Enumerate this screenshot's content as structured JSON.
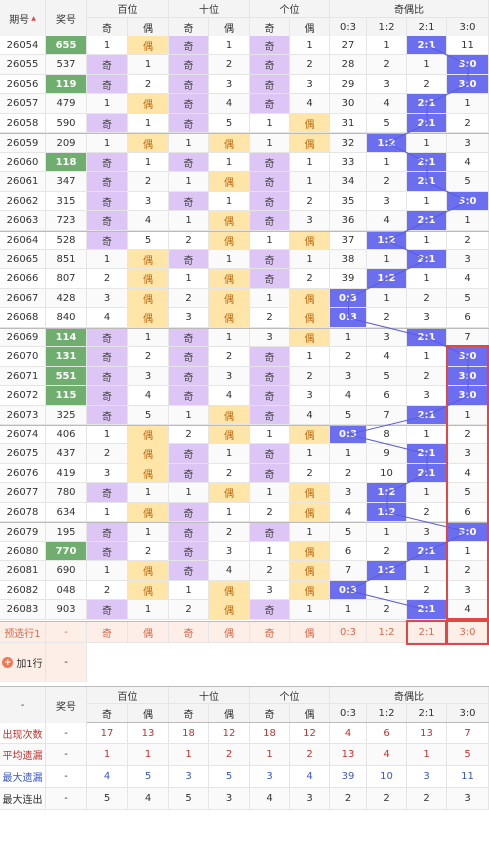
{
  "header": {
    "period": "期号",
    "award": "奖号",
    "groups": [
      "百位",
      "十位",
      "个位",
      "奇偶比"
    ],
    "sub": [
      "奇",
      "偶",
      "奇",
      "偶",
      "奇",
      "偶",
      "0:3",
      "1:2",
      "2:1",
      "3:0"
    ]
  },
  "rows": [
    {
      "p": "26054",
      "n": "655",
      "g": 1,
      "c": [
        "1",
        "偶",
        "奇",
        "1",
        "奇",
        "1",
        "27",
        "1",
        "2:1",
        "11"
      ]
    },
    {
      "p": "26055",
      "n": "537",
      "g": 0,
      "c": [
        "奇",
        "1",
        "奇",
        "2",
        "奇",
        "2",
        "28",
        "2",
        "1",
        "3:0"
      ]
    },
    {
      "p": "26056",
      "n": "119",
      "g": 1,
      "c": [
        "奇",
        "2",
        "奇",
        "3",
        "奇",
        "3",
        "29",
        "3",
        "2",
        "3:0"
      ]
    },
    {
      "p": "26057",
      "n": "479",
      "g": 0,
      "c": [
        "1",
        "偶",
        "奇",
        "4",
        "奇",
        "4",
        "30",
        "4",
        "2:1",
        "1"
      ]
    },
    {
      "p": "26058",
      "n": "590",
      "g": 0,
      "c": [
        "奇",
        "1",
        "奇",
        "5",
        "1",
        "偶",
        "31",
        "5",
        "2:1",
        "2"
      ]
    },
    {
      "p": "26059",
      "n": "209",
      "g": 0,
      "c": [
        "1",
        "偶",
        "1",
        "偶",
        "1",
        "偶",
        "32",
        "1:2",
        "1",
        "3"
      ]
    },
    {
      "p": "26060",
      "n": "118",
      "g": 1,
      "c": [
        "奇",
        "1",
        "奇",
        "1",
        "奇",
        "1",
        "33",
        "1",
        "2:1",
        "4"
      ]
    },
    {
      "p": "26061",
      "n": "347",
      "g": 0,
      "c": [
        "奇",
        "2",
        "1",
        "偶",
        "奇",
        "1",
        "34",
        "2",
        "2:1",
        "5"
      ]
    },
    {
      "p": "26062",
      "n": "315",
      "g": 0,
      "c": [
        "奇",
        "3",
        "奇",
        "1",
        "奇",
        "2",
        "35",
        "3",
        "1",
        "3:0"
      ]
    },
    {
      "p": "26063",
      "n": "723",
      "g": 0,
      "c": [
        "奇",
        "4",
        "1",
        "偶",
        "奇",
        "3",
        "36",
        "4",
        "2:1",
        "1"
      ]
    },
    {
      "p": "26064",
      "n": "528",
      "g": 0,
      "c": [
        "奇",
        "5",
        "2",
        "偶",
        "1",
        "偶",
        "37",
        "1:2",
        "1",
        "2"
      ]
    },
    {
      "p": "26065",
      "n": "851",
      "g": 0,
      "c": [
        "1",
        "偶",
        "奇",
        "1",
        "奇",
        "1",
        "38",
        "1",
        "2:1",
        "3"
      ]
    },
    {
      "p": "26066",
      "n": "807",
      "g": 0,
      "c": [
        "2",
        "偶",
        "1",
        "偶",
        "奇",
        "2",
        "39",
        "1:2",
        "1",
        "4"
      ]
    },
    {
      "p": "26067",
      "n": "428",
      "g": 0,
      "c": [
        "3",
        "偶",
        "2",
        "偶",
        "1",
        "偶",
        "0:3",
        "1",
        "2",
        "5"
      ]
    },
    {
      "p": "26068",
      "n": "840",
      "g": 0,
      "c": [
        "4",
        "偶",
        "3",
        "偶",
        "2",
        "偶",
        "0:3",
        "2",
        "3",
        "6"
      ]
    },
    {
      "p": "26069",
      "n": "114",
      "g": 1,
      "c": [
        "奇",
        "1",
        "奇",
        "1",
        "3",
        "偶",
        "1",
        "3",
        "2:1",
        "7"
      ]
    },
    {
      "p": "26070",
      "n": "131",
      "g": 1,
      "c": [
        "奇",
        "2",
        "奇",
        "2",
        "奇",
        "1",
        "2",
        "4",
        "1",
        "3:0"
      ]
    },
    {
      "p": "26071",
      "n": "551",
      "g": 1,
      "c": [
        "奇",
        "3",
        "奇",
        "3",
        "奇",
        "2",
        "3",
        "5",
        "2",
        "3:0"
      ]
    },
    {
      "p": "26072",
      "n": "115",
      "g": 1,
      "c": [
        "奇",
        "4",
        "奇",
        "4",
        "奇",
        "3",
        "4",
        "6",
        "3",
        "3:0"
      ]
    },
    {
      "p": "26073",
      "n": "325",
      "g": 0,
      "c": [
        "奇",
        "5",
        "1",
        "偶",
        "奇",
        "4",
        "5",
        "7",
        "2:1",
        "1"
      ]
    },
    {
      "p": "26074",
      "n": "406",
      "g": 0,
      "c": [
        "1",
        "偶",
        "2",
        "偶",
        "1",
        "偶",
        "0:3",
        "8",
        "1",
        "2"
      ]
    },
    {
      "p": "26075",
      "n": "437",
      "g": 0,
      "c": [
        "2",
        "偶",
        "奇",
        "1",
        "奇",
        "1",
        "1",
        "9",
        "2:1",
        "3"
      ]
    },
    {
      "p": "26076",
      "n": "419",
      "g": 0,
      "c": [
        "3",
        "偶",
        "奇",
        "2",
        "奇",
        "2",
        "2",
        "10",
        "2:1",
        "4"
      ]
    },
    {
      "p": "26077",
      "n": "780",
      "g": 0,
      "c": [
        "奇",
        "1",
        "1",
        "偶",
        "1",
        "偶",
        "3",
        "1:2",
        "1",
        "5"
      ]
    },
    {
      "p": "26078",
      "n": "634",
      "g": 0,
      "c": [
        "1",
        "偶",
        "奇",
        "1",
        "2",
        "偶",
        "4",
        "1:2",
        "2",
        "6"
      ]
    },
    {
      "p": "26079",
      "n": "195",
      "g": 0,
      "c": [
        "奇",
        "1",
        "奇",
        "2",
        "奇",
        "1",
        "5",
        "1",
        "3",
        "3:0"
      ]
    },
    {
      "p": "26080",
      "n": "770",
      "g": 1,
      "c": [
        "奇",
        "2",
        "奇",
        "3",
        "1",
        "偶",
        "6",
        "2",
        "2:1",
        "1"
      ]
    },
    {
      "p": "26081",
      "n": "690",
      "g": 0,
      "c": [
        "1",
        "偶",
        "奇",
        "4",
        "2",
        "偶",
        "7",
        "1:2",
        "1",
        "2"
      ]
    },
    {
      "p": "26082",
      "n": "048",
      "g": 0,
      "c": [
        "2",
        "偶",
        "1",
        "偶",
        "3",
        "偶",
        "0:3",
        "1",
        "2",
        "3"
      ]
    },
    {
      "p": "26083",
      "n": "903",
      "g": 0,
      "c": [
        "奇",
        "1",
        "2",
        "偶",
        "奇",
        "1",
        "1",
        "2",
        "2:1",
        "4"
      ]
    }
  ],
  "predict": {
    "label": "预选行1",
    "n": "-",
    "c": [
      "奇",
      "偶",
      "奇",
      "偶",
      "奇",
      "偶",
      "0:3",
      "1:2",
      "2:1",
      "3:0"
    ]
  },
  "addrow": {
    "label": "加1行",
    "dash": "-"
  },
  "footer": {
    "dash": "-",
    "award": "奖号",
    "rows": [
      {
        "label": "出现次数",
        "n": "-",
        "cls": "red",
        "c": [
          "17",
          "13",
          "18",
          "12",
          "18",
          "12",
          "4",
          "6",
          "13",
          "7"
        ]
      },
      {
        "label": "平均遗漏",
        "n": "-",
        "cls": "red",
        "c": [
          "1",
          "1",
          "1",
          "2",
          "1",
          "2",
          "13",
          "4",
          "1",
          "5"
        ]
      },
      {
        "label": "最大遗漏",
        "n": "-",
        "cls": "blue",
        "c": [
          "4",
          "5",
          "3",
          "5",
          "3",
          "4",
          "39",
          "10",
          "3",
          "11"
        ]
      },
      {
        "label": "最大连出",
        "n": "-",
        "cls": "",
        "c": [
          "5",
          "4",
          "5",
          "3",
          "4",
          "3",
          "2",
          "2",
          "2",
          "3"
        ]
      }
    ]
  }
}
